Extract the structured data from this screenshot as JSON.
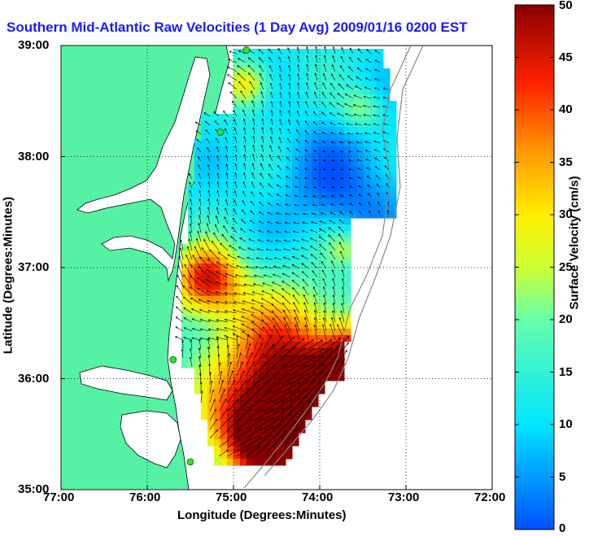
{
  "title": "Southern Mid-Atlantic Raw Velocities (1 Day Avg) 2009/01/16 0200 EST",
  "axes": {
    "xlabel": "Longitude (Degrees:Minutes)",
    "ylabel": "Latitude (Degrees:Minutes)",
    "x_ticks": [
      "77:00",
      "76:00",
      "75:00",
      "74:00",
      "73:00",
      "72:00"
    ],
    "y_ticks": [
      "39:00",
      "38:00",
      "37:00",
      "36:00",
      "35:00"
    ]
  },
  "colorbar": {
    "label": "Surface Velocity (cm/s)",
    "ticks": [
      "50",
      "45",
      "40",
      "35",
      "30",
      "25",
      "20",
      "15",
      "10",
      "5",
      "0"
    ],
    "range": [
      0,
      50
    ]
  },
  "colors": {
    "land": "#55f2a4",
    "title": "#1a1aff",
    "station": "#33dd33"
  },
  "map": {
    "lon_range": [
      -77,
      -72
    ],
    "lat_range": [
      35,
      39
    ],
    "grid": true,
    "stations": [
      {
        "lon": -74.85,
        "lat": 38.96
      },
      {
        "lon": -75.15,
        "lat": 38.22
      },
      {
        "lon": -75.7,
        "lat": 36.17
      },
      {
        "lon": -75.5,
        "lat": 35.25
      }
    ]
  }
}
